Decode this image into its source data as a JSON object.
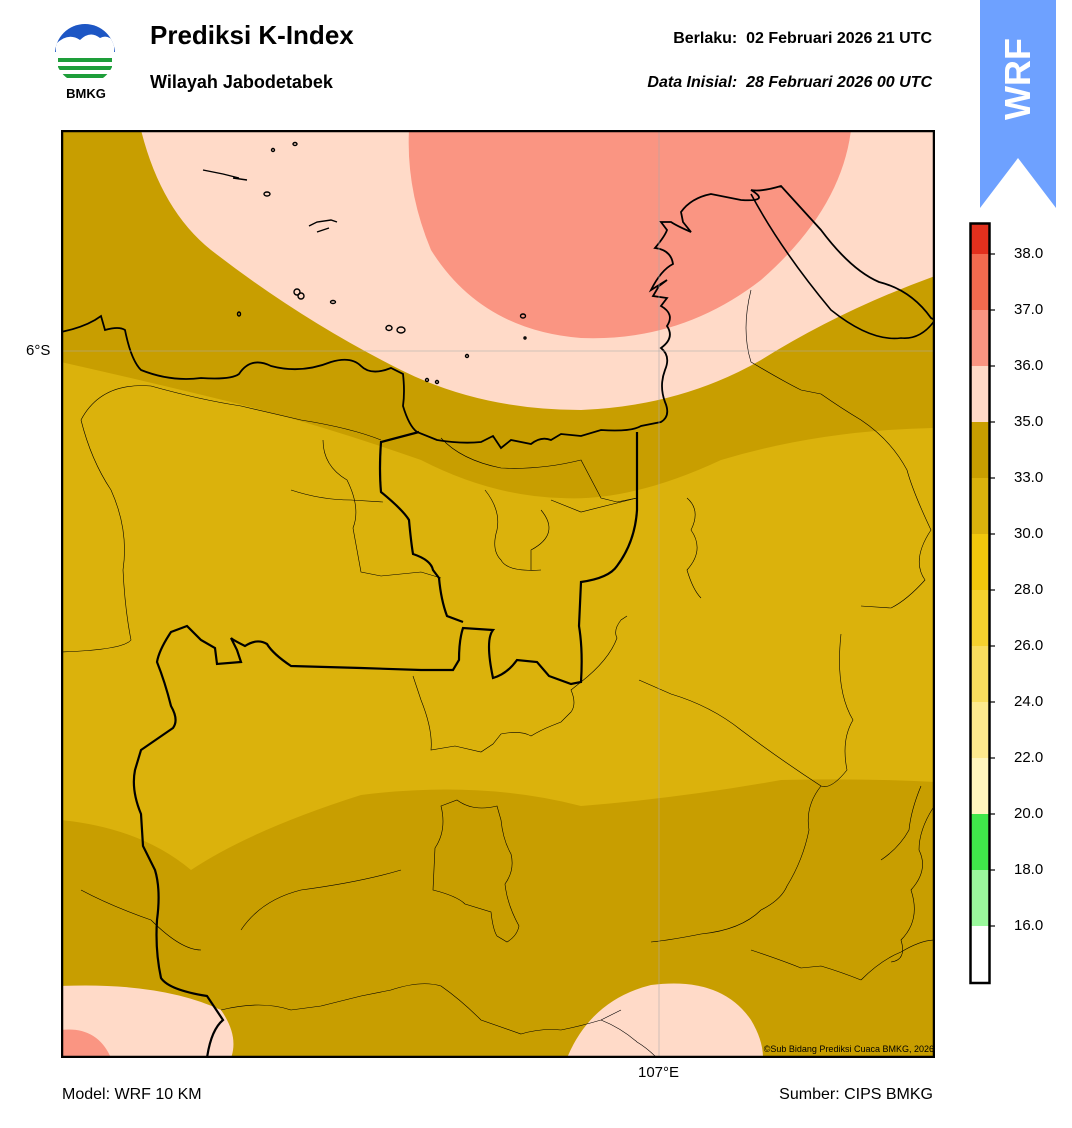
{
  "header": {
    "title": "Prediksi K-Index",
    "region": "Wilayah Jabodetabek",
    "valid_label": "Berlaku:",
    "valid_time": "02 Februari 2026 21 UTC",
    "init_label": "Data Inisial:",
    "init_time": "28 Februari 2026 00 UTC",
    "logo_text": "BMKG",
    "logo_icon": "bmkg-logo-icon"
  },
  "wrf_badge": {
    "text": "WRF",
    "color": "#6ea1ff"
  },
  "map": {
    "lat_label": "6°S",
    "lon_label": "107°E",
    "credit": "©Sub Bidang Prediksi Cuaca BMKG, 2026",
    "field_colors": {
      "band_30_33": "#dbb20c",
      "band_33_35": "#c89e00",
      "band_35_36": "#ffdac8",
      "band_36_37": "#fa9582"
    }
  },
  "colorbar": {
    "ticks": [
      "38.0",
      "37.0",
      "36.0",
      "35.0",
      "33.0",
      "30.0",
      "28.0",
      "26.0",
      "24.0",
      "22.0",
      "20.0",
      "18.0",
      "16.0"
    ],
    "colors": [
      "#e2301d",
      "#f26a4e",
      "#fa9582",
      "#ffdac8",
      "#c89e00",
      "#dbb20c",
      "#f1c80c",
      "#f5d12e",
      "#f9dd5e",
      "#fde98e",
      "#fff5bd",
      "#40e84a",
      "#9af89c",
      "#ffffff"
    ]
  },
  "footer": {
    "model": "Model: WRF 10 KM",
    "source": "Sumber: CIPS BMKG"
  }
}
